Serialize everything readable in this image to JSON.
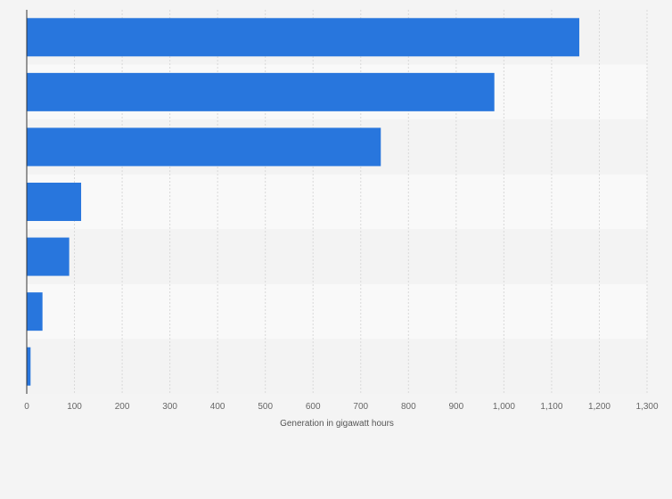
{
  "colors": {
    "background": "#f4f4f4",
    "band_light": "#f9f9f9",
    "band_dark": "#f3f3f3",
    "bar": "#2876dd",
    "gridline": "#d9d9d9",
    "axis_line": "#333333"
  },
  "chart_data": {
    "type": "bar",
    "orientation": "horizontal",
    "categories": [
      "",
      "",
      "",
      "",
      "",
      "",
      ""
    ],
    "values": [
      1158,
      980,
      742,
      114,
      89,
      33,
      8
    ],
    "xlabel": "Generation in gigawatt hours",
    "ylabel": "",
    "xlim": [
      0,
      1300
    ],
    "x_ticks": [
      0,
      100,
      200,
      300,
      400,
      500,
      600,
      700,
      800,
      900,
      1000,
      1100,
      1200,
      1300
    ],
    "x_tick_labels": [
      "0",
      "100",
      "200",
      "300",
      "400",
      "500",
      "600",
      "700",
      "800",
      "900",
      "1,000",
      "1,100",
      "1,200",
      "1,300"
    ],
    "grid": true,
    "legend": "none"
  }
}
